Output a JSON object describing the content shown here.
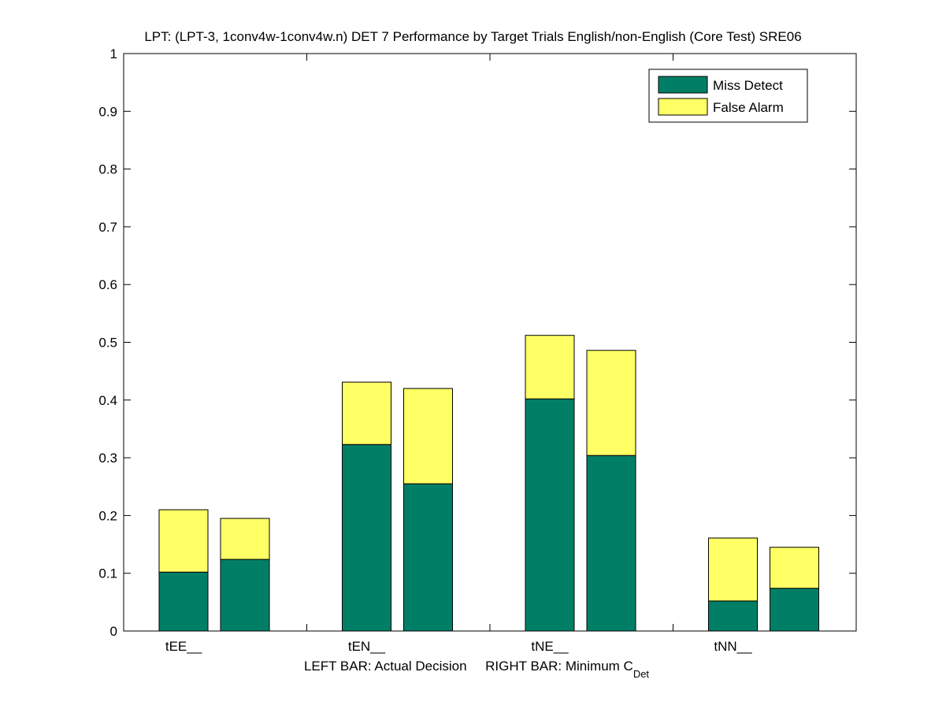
{
  "chart_data": {
    "type": "bar",
    "stacked": true,
    "title": "LPT: (LPT-3, 1conv4w-1conv4w.n) DET 7 Performance by Target Trials English/non-English (Core Test) SRE06",
    "xlabel_left": "LEFT BAR: Actual Decision",
    "xlabel_right": "RIGHT BAR: Minimum C",
    "xlabel_right_sub": "Det",
    "categories": [
      "tEE__",
      "tEN__",
      "tNE__",
      "tNN__"
    ],
    "ylim": [
      0,
      1
    ],
    "yticks": [
      "0",
      "0.1",
      "0.2",
      "0.3",
      "0.4",
      "0.5",
      "0.6",
      "0.7",
      "0.8",
      "0.9",
      "1"
    ],
    "grid": false,
    "legend_position": "top-right",
    "series": [
      {
        "name": "Miss Detect",
        "color": "#007f66",
        "left": [
          0.102,
          0.323,
          0.402,
          0.052
        ],
        "right": [
          0.124,
          0.255,
          0.304,
          0.074
        ]
      },
      {
        "name": "False Alarm",
        "color": "#ffff66",
        "left": [
          0.108,
          0.108,
          0.11,
          0.109
        ],
        "right": [
          0.071,
          0.165,
          0.182,
          0.071
        ]
      }
    ]
  }
}
